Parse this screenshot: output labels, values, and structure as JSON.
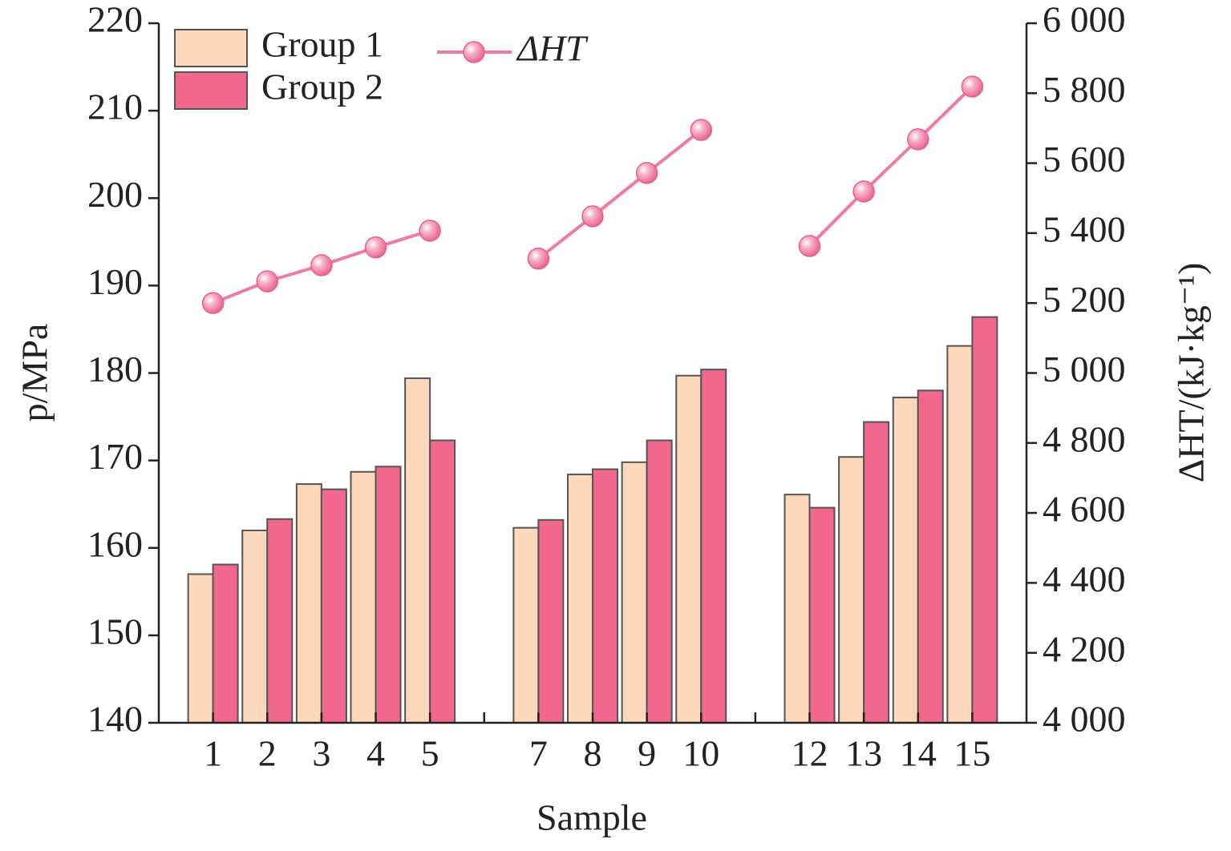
{
  "chart_data": {
    "type": "bar",
    "xlabel": "Sample",
    "ylabel": "p/MPa",
    "y2label": "ΔHT/(kJ·kg⁻¹)",
    "categories": [
      "1",
      "2",
      "3",
      "4",
      "5",
      null,
      "7",
      "8",
      "9",
      "10",
      null,
      "12",
      "13",
      "14",
      "15"
    ],
    "series": [
      {
        "name": "Group 1",
        "type": "bar",
        "color": "#fdd8ba",
        "values": [
          157.0,
          162.0,
          167.3,
          168.7,
          179.4,
          null,
          162.3,
          168.4,
          169.8,
          179.7,
          null,
          166.1,
          170.4,
          177.2,
          183.1
        ]
      },
      {
        "name": "Group 2",
        "type": "bar",
        "color": "#f2678e",
        "values": [
          158.1,
          163.3,
          166.7,
          169.3,
          172.3,
          null,
          163.2,
          169.0,
          172.3,
          180.4,
          null,
          164.6,
          174.4,
          178.0,
          186.4
        ]
      },
      {
        "name": "ΔHT",
        "type": "line",
        "axis": "y2",
        "color": "#f07aa0",
        "values": [
          5200,
          5262,
          5308,
          5359,
          5407,
          null,
          5327,
          5448,
          5572,
          5695,
          null,
          5363,
          5519,
          5668,
          5819
        ]
      }
    ],
    "ylim": [
      140,
      220
    ],
    "yticks": [
      140,
      150,
      160,
      170,
      180,
      190,
      200,
      210,
      220
    ],
    "y2lim": [
      4000,
      6000
    ],
    "y2ticks": [
      {
        "value": 4000,
        "label": "4 000"
      },
      {
        "value": 4200,
        "label": "4 200"
      },
      {
        "value": 4400,
        "label": "4 400"
      },
      {
        "value": 4600,
        "label": "4 600"
      },
      {
        "value": 4800,
        "label": "4 800"
      },
      {
        "value": 5000,
        "label": "5 000"
      },
      {
        "value": 5200,
        "label": "5 200"
      },
      {
        "value": 5400,
        "label": "5 400"
      },
      {
        "value": 5600,
        "label": "5 600"
      },
      {
        "value": 5800,
        "label": "5 800"
      },
      {
        "value": 6000,
        "label": "6 000"
      }
    ],
    "legend": "upper left"
  }
}
